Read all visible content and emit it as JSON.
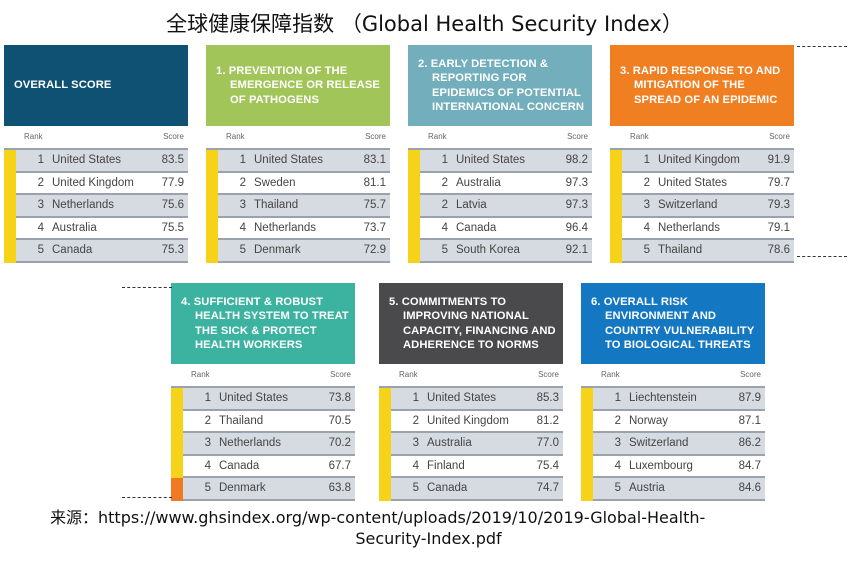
{
  "title": "全球健康保障指数 （Global Health Security Index）",
  "rank_label": "Rank",
  "score_label": "Score",
  "colors": {
    "highlight_bar": "#f6d318",
    "alert_bar": "#f07a22"
  },
  "panels": [
    {
      "title": "OVERALL SCORE",
      "color": "#0f5173",
      "rows": [
        {
          "rank": "1",
          "country": "United States",
          "score": "83.5"
        },
        {
          "rank": "2",
          "country": "United Kingdom",
          "score": "77.9"
        },
        {
          "rank": "3",
          "country": "Netherlands",
          "score": "75.6"
        },
        {
          "rank": "4",
          "country": "Australia",
          "score": "75.5"
        },
        {
          "rank": "5",
          "country": "Canada",
          "score": "75.3"
        }
      ]
    },
    {
      "title": "1. PREVENTION OF THE EMERGENCE OR RELEASE OF PATHOGENS",
      "color": "#a2c55a",
      "rows": [
        {
          "rank": "1",
          "country": "United States",
          "score": "83.1"
        },
        {
          "rank": "2",
          "country": "Sweden",
          "score": "81.1"
        },
        {
          "rank": "3",
          "country": "Thailand",
          "score": "75.7"
        },
        {
          "rank": "4",
          "country": "Netherlands",
          "score": "73.7"
        },
        {
          "rank": "5",
          "country": "Denmark",
          "score": "72.9"
        }
      ]
    },
    {
      "title": "2. EARLY DETECTION & REPORTING FOR EPIDEMICS OF POTENTIAL INTERNATIONAL CONCERN",
      "color": "#72aebc",
      "rows": [
        {
          "rank": "1",
          "country": "United States",
          "score": "98.2"
        },
        {
          "rank": "2",
          "country": "Australia",
          "score": "97.3"
        },
        {
          "rank": "2",
          "country": "Latvia",
          "score": "97.3"
        },
        {
          "rank": "4",
          "country": "Canada",
          "score": "96.4"
        },
        {
          "rank": "5",
          "country": "South Korea",
          "score": "92.1"
        }
      ]
    },
    {
      "title": "3. RAPID RESPONSE TO AND MITIGATION OF THE SPREAD OF AN EPIDEMIC",
      "color": "#f07f22",
      "rows": [
        {
          "rank": "1",
          "country": "United Kingdom",
          "score": "91.9"
        },
        {
          "rank": "2",
          "country": "United States",
          "score": "79.7"
        },
        {
          "rank": "3",
          "country": "Switzerland",
          "score": "79.3"
        },
        {
          "rank": "4",
          "country": "Netherlands",
          "score": "79.1"
        },
        {
          "rank": "5",
          "country": "Thailand",
          "score": "78.6"
        }
      ]
    },
    {
      "title": "4. SUFFICIENT & ROBUST HEALTH SYSTEM TO TREAT THE SICK & PROTECT HEALTH WORKERS",
      "color": "#3bb3a0",
      "rows": [
        {
          "rank": "1",
          "country": "United States",
          "score": "73.8"
        },
        {
          "rank": "2",
          "country": "Thailand",
          "score": "70.5"
        },
        {
          "rank": "3",
          "country": "Netherlands",
          "score": "70.2"
        },
        {
          "rank": "4",
          "country": "Canada",
          "score": "67.7"
        },
        {
          "rank": "5",
          "country": "Denmark",
          "score": "63.8",
          "alert": true
        }
      ]
    },
    {
      "title": "5. COMMITMENTS TO IMPROVING NATIONAL CAPACITY, FINANCING AND ADHERENCE TO NORMS",
      "color": "#4a4a4c",
      "rows": [
        {
          "rank": "1",
          "country": "United States",
          "score": "85.3"
        },
        {
          "rank": "2",
          "country": "United Kingdom",
          "score": "81.2"
        },
        {
          "rank": "3",
          "country": "Australia",
          "score": "77.0"
        },
        {
          "rank": "4",
          "country": "Finland",
          "score": "75.4"
        },
        {
          "rank": "5",
          "country": "Canada",
          "score": "74.7"
        }
      ]
    },
    {
      "title": "6. OVERALL RISK ENVIRONMENT AND COUNTRY VULNERABILITY TO BIOLOGICAL THREATS",
      "color": "#1477c2",
      "rows": [
        {
          "rank": "1",
          "country": "Liechtenstein",
          "score": "87.9"
        },
        {
          "rank": "2",
          "country": "Norway",
          "score": "87.1"
        },
        {
          "rank": "3",
          "country": "Switzerland",
          "score": "86.2"
        },
        {
          "rank": "4",
          "country": "Luxembourg",
          "score": "84.7"
        },
        {
          "rank": "5",
          "country": "Austria",
          "score": "84.6"
        }
      ]
    }
  ],
  "source": {
    "label": "来源：",
    "line1": "https://www.ghsindex.org/wp-content/uploads/2019/10/2019-Global-Health-",
    "line2": "Security-Index.pdf"
  }
}
